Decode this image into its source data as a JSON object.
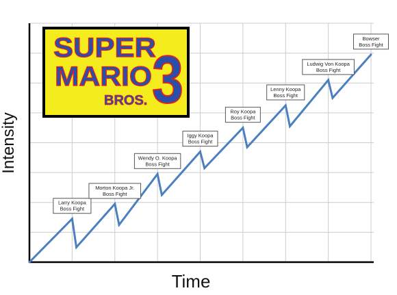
{
  "chart_data": {
    "type": "line",
    "title": "",
    "xlabel": "Time",
    "ylabel": "Intensity",
    "grid": true,
    "legend": "none",
    "logo": {
      "lines": [
        "SUPER",
        "MARIO",
        "BROS.",
        "3"
      ],
      "colors": {
        "background": "#f4ec1c",
        "text": "#2a4fa8",
        "shadow": "#e02020"
      }
    },
    "x_grid_count": 8,
    "y_grid_count": 8,
    "line_color": "#4a7fc0",
    "series": [
      {
        "x": [
          0,
          1.0,
          1.1,
          2.0,
          2.1,
          3.0,
          3.1,
          4.0,
          4.1,
          5.0,
          5.1,
          6.0,
          6.1,
          7.0,
          7.1,
          8.0
        ],
        "y": [
          0,
          1.45,
          0.5,
          1.95,
          1.25,
          2.95,
          2.25,
          3.7,
          3.15,
          4.5,
          3.85,
          5.25,
          4.55,
          6.1,
          5.5,
          6.95
        ]
      }
    ],
    "annotations": [
      {
        "lines": [
          "Larry Koopa",
          "Boss Fight"
        ],
        "x": 1.0
      },
      {
        "lines": [
          "Morton Koopa Jr.",
          "Boss Fight"
        ],
        "x": 2.0
      },
      {
        "lines": [
          "Wendy O. Koopa",
          "Boss Fight"
        ],
        "x": 3.0
      },
      {
        "lines": [
          "Iggy Koopa",
          "Boss Fight"
        ],
        "x": 4.0
      },
      {
        "lines": [
          "Roy Koopa",
          "Boss Fight"
        ],
        "x": 5.0
      },
      {
        "lines": [
          "Lenny Koopa",
          "Boss Fight"
        ],
        "x": 6.0
      },
      {
        "lines": [
          "Ludwig Von Koopa",
          "Boss Fight"
        ],
        "x": 7.0
      },
      {
        "lines": [
          "Bowser",
          "Boss Fight"
        ],
        "x": 8.0
      }
    ]
  }
}
